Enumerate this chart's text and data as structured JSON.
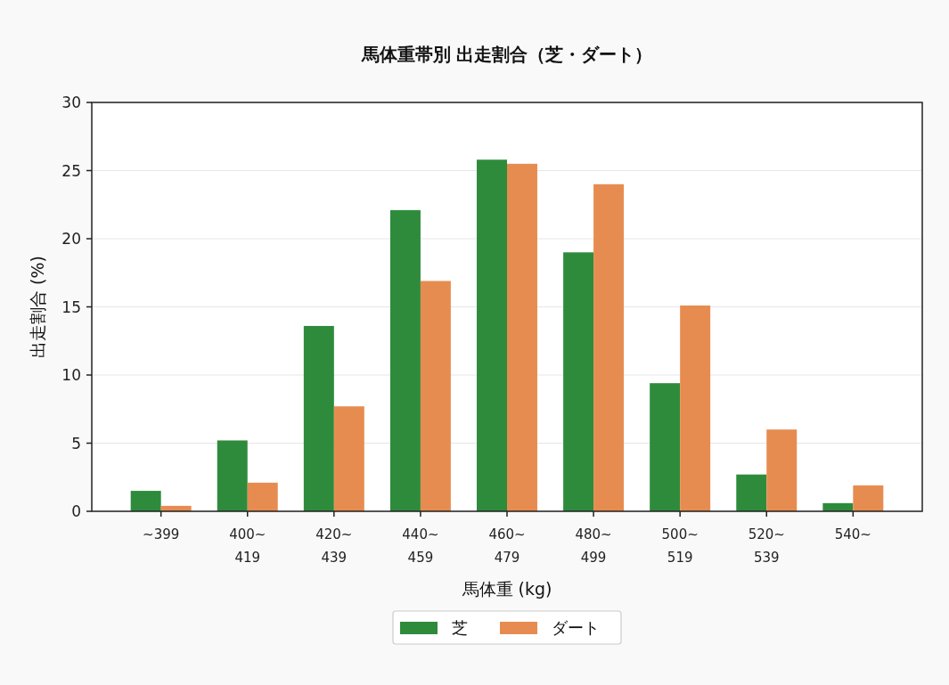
{
  "chart_data": {
    "type": "bar",
    "title": "馬体重帯別 出走割合（芝・ダート）",
    "xlabel": "馬体重 (kg)",
    "ylabel": "出走割合 (%)",
    "categories": [
      "~399",
      "400~\n419",
      "420~\n439",
      "440~\n459",
      "460~\n479",
      "480~\n499",
      "500~\n519",
      "520~\n539",
      "540~"
    ],
    "series": [
      {
        "name": "芝",
        "color": "#2e8b3c",
        "values": [
          1.5,
          5.2,
          13.6,
          22.1,
          25.8,
          19.0,
          9.4,
          2.7,
          0.6
        ]
      },
      {
        "name": "ダート",
        "color": "#e78c50",
        "values": [
          0.4,
          2.1,
          7.7,
          16.9,
          25.5,
          24.0,
          15.1,
          6.0,
          1.9
        ]
      }
    ],
    "ylim": [
      0,
      30
    ],
    "yticks": [
      0,
      5,
      10,
      15,
      20,
      25,
      30
    ],
    "grid": "y",
    "legend": "bottom"
  }
}
